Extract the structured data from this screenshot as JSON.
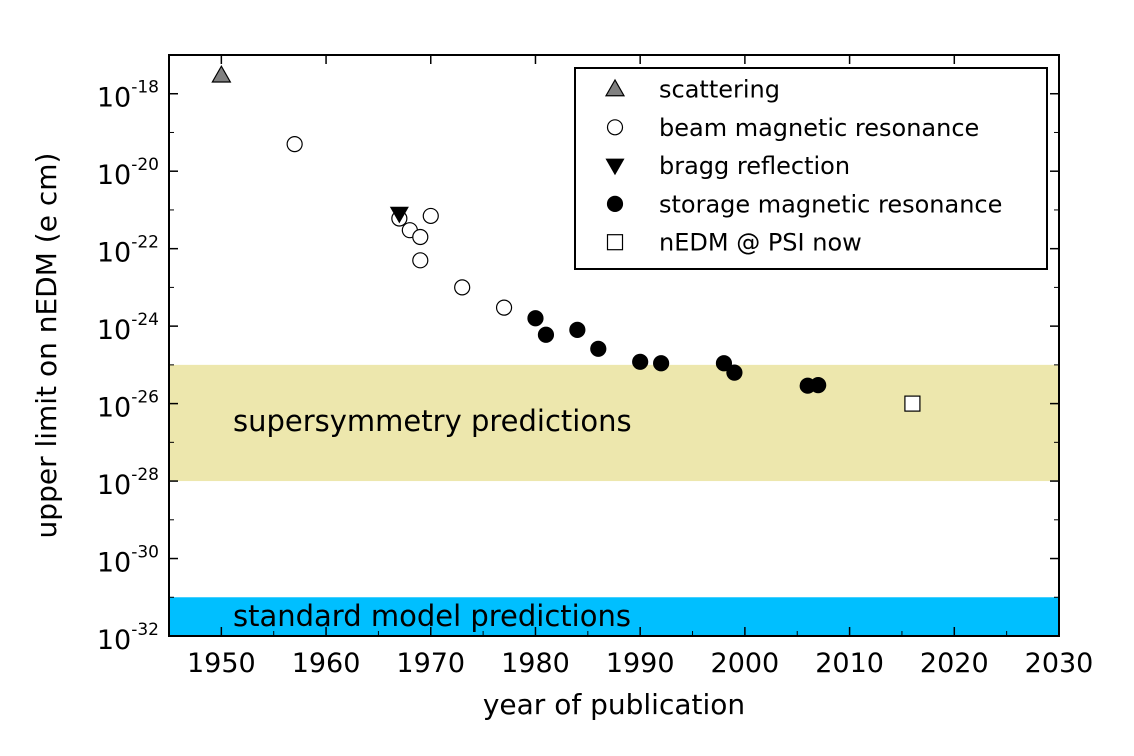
{
  "chart_data": {
    "type": "scatter",
    "xlabel": "year of publication",
    "ylabel": "upper limit on nEDM (e cm)",
    "xlim": [
      1945,
      2030
    ],
    "ylim_exponent": [
      -32,
      -17
    ],
    "y_scale": "log",
    "grid": false,
    "legend_position": "top-right",
    "x_ticks": [
      "1950",
      "1960",
      "1970",
      "1980",
      "1990",
      "2000",
      "2010",
      "2020",
      "2030"
    ],
    "y_ticks": [
      {
        "base": "10",
        "exp": "-18"
      },
      {
        "base": "10",
        "exp": "-20"
      },
      {
        "base": "10",
        "exp": "-22"
      },
      {
        "base": "10",
        "exp": "-24"
      },
      {
        "base": "10",
        "exp": "-26"
      },
      {
        "base": "10",
        "exp": "-28"
      },
      {
        "base": "10",
        "exp": "-30"
      },
      {
        "base": "10",
        "exp": "-32"
      }
    ],
    "bands": [
      {
        "label": "supersymmetry predictions",
        "y_from": 1e-28,
        "y_to": 1e-25,
        "color": "#ede7ad"
      },
      {
        "label": "standard model predictions",
        "y_from": 1e-32,
        "y_to": 1e-31,
        "color": "#00bfff"
      }
    ],
    "series": [
      {
        "name": "scattering",
        "marker": "triangle-up",
        "fill": "#808080",
        "points": [
          {
            "x": 1950,
            "y": 3e-18
          }
        ]
      },
      {
        "name": "beam magnetic resonance",
        "marker": "circle",
        "fill": "#ffffff",
        "points": [
          {
            "x": 1957,
            "y": 5e-20
          },
          {
            "x": 1967,
            "y": 6e-22
          },
          {
            "x": 1968,
            "y": 3e-22
          },
          {
            "x": 1969,
            "y": 2e-22
          },
          {
            "x": 1969,
            "y": 5e-23
          },
          {
            "x": 1970,
            "y": 7e-22
          },
          {
            "x": 1973,
            "y": 1e-23
          },
          {
            "x": 1977,
            "y": 3e-24
          }
        ]
      },
      {
        "name": "bragg reflection",
        "marker": "triangle-down",
        "fill": "#000000",
        "points": [
          {
            "x": 1967,
            "y": 8e-22
          }
        ]
      },
      {
        "name": "storage magnetic resonance",
        "marker": "circle",
        "fill": "#000000",
        "points": [
          {
            "x": 1980,
            "y": 1.6e-24
          },
          {
            "x": 1981,
            "y": 6e-25
          },
          {
            "x": 1984,
            "y": 8e-25
          },
          {
            "x": 1986,
            "y": 2.6e-25
          },
          {
            "x": 1990,
            "y": 1.2e-25
          },
          {
            "x": 1992,
            "y": 1.1e-25
          },
          {
            "x": 1998,
            "y": 1.1e-25
          },
          {
            "x": 1999,
            "y": 6.3e-26
          },
          {
            "x": 2006,
            "y": 2.9e-26
          },
          {
            "x": 2007,
            "y": 3e-26
          }
        ]
      },
      {
        "name": "nEDM @ PSI now",
        "marker": "square",
        "fill": "#ffffff",
        "points": [
          {
            "x": 2016,
            "y": 1e-26
          }
        ]
      }
    ]
  }
}
